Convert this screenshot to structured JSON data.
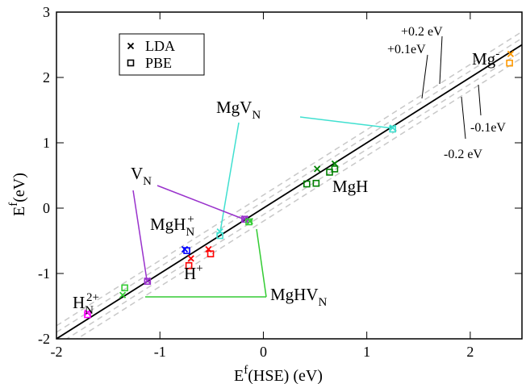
{
  "chart_data": {
    "type": "scatter",
    "xlabel": {
      "text": "E",
      "sup": "f",
      "rest": "(HSE) (eV)"
    },
    "ylabel": {
      "text": "E",
      "sup": "f",
      "rest": "(eV)"
    },
    "xlim": [
      -2,
      2.5
    ],
    "ylim": [
      -2,
      3
    ],
    "xticks": [
      -2,
      -1,
      0,
      1,
      2
    ],
    "yticks": [
      -2,
      -1,
      0,
      1,
      2,
      3
    ],
    "legend": "upper left",
    "identity_line": true,
    "reference_lines": [
      {
        "offset": 0.2,
        "label": "+0.2 eV"
      },
      {
        "offset": 0.1,
        "label": "+0.1eV"
      },
      {
        "offset": -0.1,
        "label": "-0.1eV"
      },
      {
        "offset": -0.2,
        "label": "-0.2 eV"
      }
    ],
    "series": [
      {
        "name": "LDA",
        "marker": "x",
        "x": [
          2.39,
          1.25,
          -0.42,
          -0.18,
          -1.12,
          -0.13,
          -1.36,
          -1.7,
          -0.76,
          -0.7,
          -0.53,
          0.52,
          0.69
        ],
        "values": [
          2.36,
          1.23,
          -0.36,
          -0.16,
          -1.11,
          -0.2,
          -1.33,
          -1.6,
          -0.63,
          -0.77,
          -0.63,
          0.6,
          0.68
        ],
        "colors": [
          "#ff9900",
          "#40e0d0",
          "#40e0d0",
          "#9932cc",
          "#9932cc",
          "#33cc33",
          "#33cc33",
          "#ff00ff",
          "#0000ff",
          "#ff0000",
          "#ff0000",
          "#008000",
          "#008000"
        ]
      },
      {
        "name": "PBE",
        "marker": "square",
        "x": [
          2.38,
          1.25,
          -0.42,
          -0.18,
          -1.12,
          -0.14,
          -1.34,
          -1.7,
          -0.74,
          -0.72,
          -0.51,
          0.42,
          0.51,
          0.64,
          0.69
        ],
        "values": [
          2.22,
          1.21,
          -0.42,
          -0.17,
          -1.12,
          -0.21,
          -1.22,
          -1.63,
          -0.65,
          -0.88,
          -0.7,
          0.37,
          0.38,
          0.55,
          0.6
        ],
        "colors": [
          "#ff9900",
          "#40e0d0",
          "#40e0d0",
          "#9932cc",
          "#9932cc",
          "#33cc33",
          "#33cc33",
          "#ff00ff",
          "#0000ff",
          "#ff0000",
          "#ff0000",
          "#008000",
          "#008000",
          "#008000",
          "#008000"
        ]
      }
    ],
    "annotations": [
      {
        "text": "Mg",
        "sup": "-",
        "color": "#ff9900"
      },
      {
        "text": "MgV",
        "sub": "N",
        "color": "#40e0d0"
      },
      {
        "text": "V",
        "sub": "N",
        "color": "#9932cc"
      },
      {
        "text": "MgH",
        "sub": "N",
        "sup": "+",
        "color": "#0000ff"
      },
      {
        "text": "MgH",
        "color": "#008000"
      },
      {
        "text": "H",
        "sup": "+",
        "color": "#ff0000"
      },
      {
        "text": "H",
        "sub": "N",
        "sup": "2+",
        "color": "#ff00ff"
      },
      {
        "text": "MgHV",
        "sub": "N",
        "color": "#33cc33"
      }
    ]
  }
}
